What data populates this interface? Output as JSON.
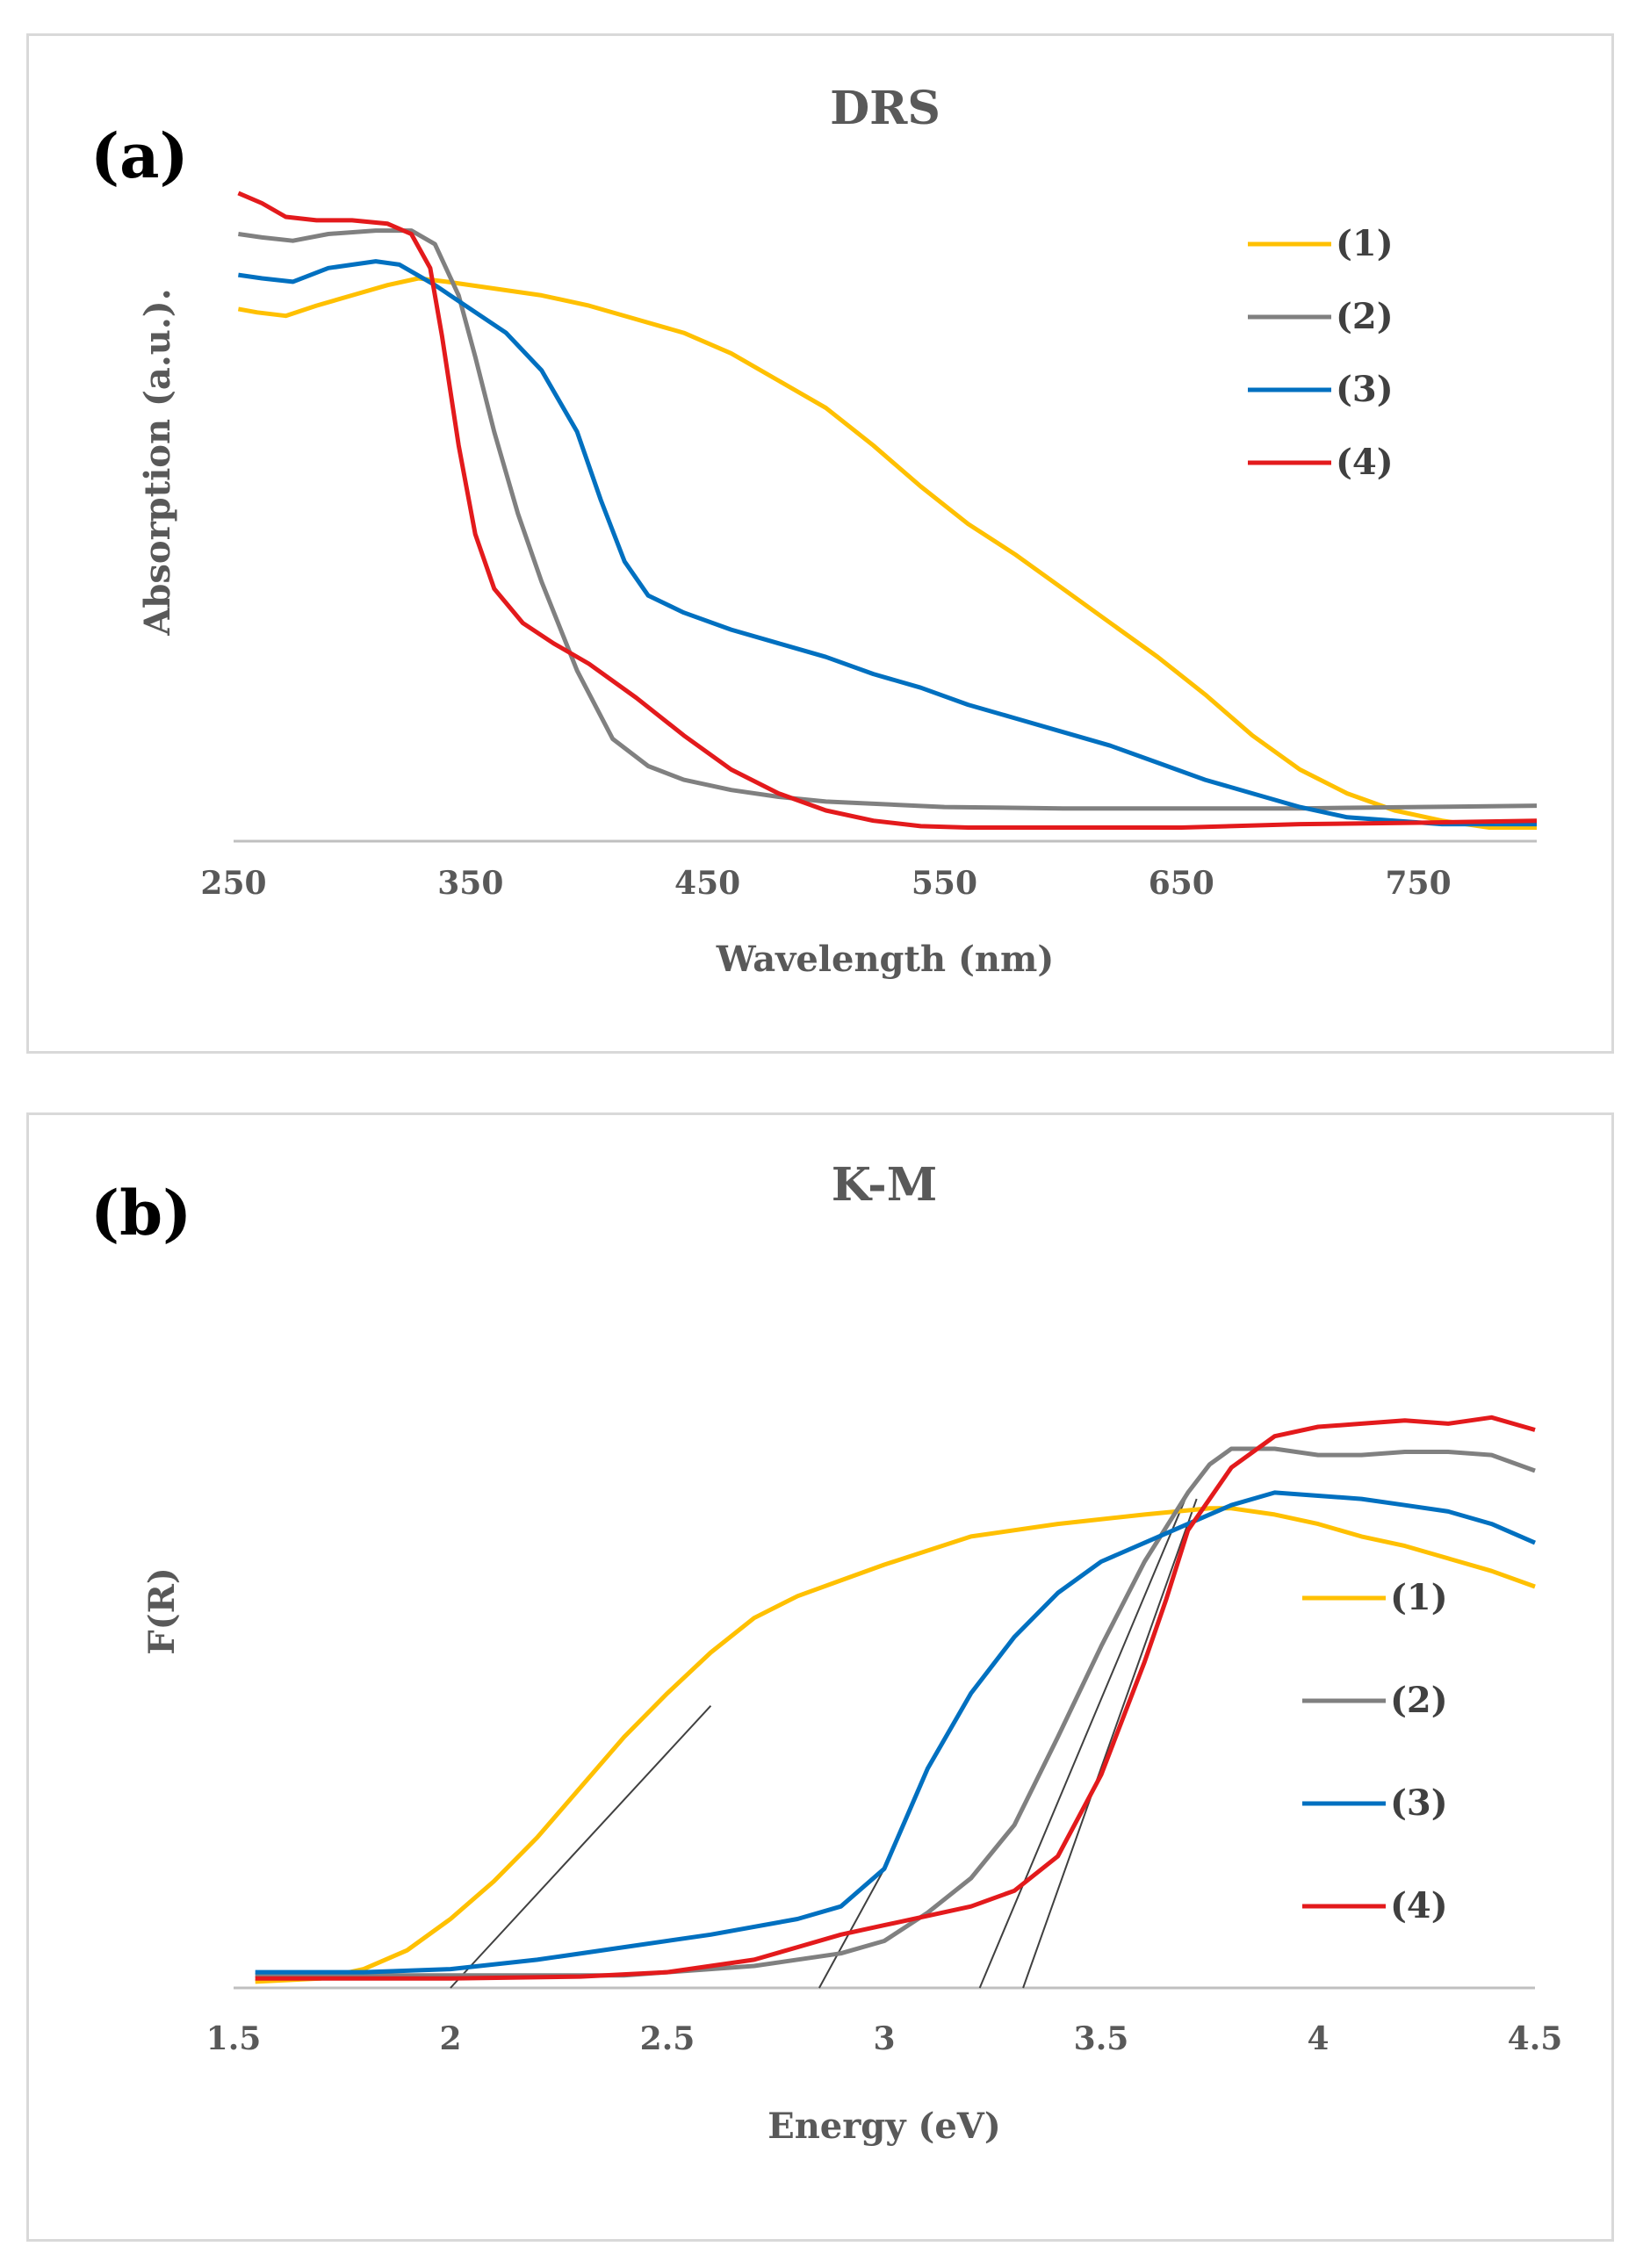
{
  "chart_data": [
    {
      "panel_label": "(a)",
      "type": "line",
      "title": "DRS",
      "xlabel": "Wavelength (nm)",
      "ylabel": "Absorption (a.u.).",
      "xlim": [
        250,
        800
      ],
      "ylim": [
        0,
        1.0
      ],
      "xticks": [
        "250",
        "350",
        "450",
        "550",
        "650",
        "750"
      ],
      "xtick_values": [
        250,
        350,
        450,
        550,
        650,
        750
      ],
      "grid": false,
      "legend_position": "top-right",
      "series": [
        {
          "name": "(1)",
          "color": "#ffc000",
          "points": [
            [
              252,
              0.78
            ],
            [
              260,
              0.775
            ],
            [
              272,
              0.77
            ],
            [
              285,
              0.785
            ],
            [
              300,
              0.8
            ],
            [
              315,
              0.815
            ],
            [
              328,
              0.825
            ],
            [
              340,
              0.82
            ],
            [
              360,
              0.81
            ],
            [
              380,
              0.8
            ],
            [
              400,
              0.785
            ],
            [
              420,
              0.765
            ],
            [
              440,
              0.745
            ],
            [
              460,
              0.715
            ],
            [
              480,
              0.675
            ],
            [
              500,
              0.635
            ],
            [
              520,
              0.58
            ],
            [
              540,
              0.52
            ],
            [
              560,
              0.465
            ],
            [
              580,
              0.42
            ],
            [
              600,
              0.37
            ],
            [
              620,
              0.32
            ],
            [
              640,
              0.27
            ],
            [
              660,
              0.215
            ],
            [
              680,
              0.155
            ],
            [
              700,
              0.105
            ],
            [
              720,
              0.07
            ],
            [
              740,
              0.045
            ],
            [
              760,
              0.03
            ],
            [
              780,
              0.02
            ],
            [
              800,
              0.02
            ]
          ]
        },
        {
          "name": "(2)",
          "color": "#808080",
          "points": [
            [
              252,
              0.89
            ],
            [
              262,
              0.885
            ],
            [
              275,
              0.88
            ],
            [
              290,
              0.89
            ],
            [
              310,
              0.895
            ],
            [
              325,
              0.895
            ],
            [
              335,
              0.875
            ],
            [
              345,
              0.8
            ],
            [
              352,
              0.71
            ],
            [
              360,
              0.6
            ],
            [
              370,
              0.48
            ],
            [
              380,
              0.38
            ],
            [
              395,
              0.25
            ],
            [
              410,
              0.15
            ],
            [
              425,
              0.11
            ],
            [
              440,
              0.09
            ],
            [
              460,
              0.075
            ],
            [
              480,
              0.065
            ],
            [
              500,
              0.058
            ],
            [
              550,
              0.05
            ],
            [
              600,
              0.048
            ],
            [
              700,
              0.048
            ],
            [
              750,
              0.05
            ],
            [
              800,
              0.052
            ]
          ]
        },
        {
          "name": "(3)",
          "color": "#0070c0",
          "points": [
            [
              252,
              0.83
            ],
            [
              262,
              0.825
            ],
            [
              275,
              0.82
            ],
            [
              290,
              0.84
            ],
            [
              310,
              0.85
            ],
            [
              320,
              0.845
            ],
            [
              335,
              0.815
            ],
            [
              350,
              0.78
            ],
            [
              365,
              0.745
            ],
            [
              380,
              0.69
            ],
            [
              395,
              0.6
            ],
            [
              405,
              0.5
            ],
            [
              415,
              0.41
            ],
            [
              425,
              0.36
            ],
            [
              440,
              0.335
            ],
            [
              460,
              0.31
            ],
            [
              480,
              0.29
            ],
            [
              500,
              0.27
            ],
            [
              520,
              0.245
            ],
            [
              540,
              0.225
            ],
            [
              560,
              0.2
            ],
            [
              580,
              0.18
            ],
            [
              600,
              0.16
            ],
            [
              620,
              0.14
            ],
            [
              640,
              0.115
            ],
            [
              660,
              0.09
            ],
            [
              680,
              0.07
            ],
            [
              700,
              0.05
            ],
            [
              720,
              0.035
            ],
            [
              740,
              0.03
            ],
            [
              760,
              0.025
            ],
            [
              780,
              0.025
            ],
            [
              800,
              0.025
            ]
          ]
        },
        {
          "name": "(4)",
          "color": "#e31a1c",
          "points": [
            [
              252,
              0.95
            ],
            [
              262,
              0.935
            ],
            [
              272,
              0.915
            ],
            [
              285,
              0.91
            ],
            [
              300,
              0.91
            ],
            [
              315,
              0.905
            ],
            [
              325,
              0.89
            ],
            [
              333,
              0.84
            ],
            [
              338,
              0.74
            ],
            [
              345,
              0.58
            ],
            [
              352,
              0.45
            ],
            [
              360,
              0.37
            ],
            [
              372,
              0.32
            ],
            [
              385,
              0.29
            ],
            [
              400,
              0.26
            ],
            [
              420,
              0.21
            ],
            [
              440,
              0.155
            ],
            [
              460,
              0.105
            ],
            [
              480,
              0.07
            ],
            [
              500,
              0.045
            ],
            [
              520,
              0.03
            ],
            [
              540,
              0.022
            ],
            [
              560,
              0.02
            ],
            [
              600,
              0.02
            ],
            [
              650,
              0.02
            ],
            [
              700,
              0.025
            ],
            [
              750,
              0.027
            ],
            [
              800,
              0.03
            ]
          ]
        }
      ]
    },
    {
      "panel_label": "(b)",
      "type": "line",
      "title": "K-M",
      "xlabel": "Energy (eV)",
      "ylabel": "F(R)",
      "xlim": [
        1.5,
        4.5
      ],
      "ylim": [
        0,
        1.0
      ],
      "xticks": [
        "1.5",
        "2",
        "2.5",
        "3",
        "3.5",
        "4",
        "4.5"
      ],
      "xtick_values": [
        1.5,
        2,
        2.5,
        3,
        3.5,
        4,
        4.5
      ],
      "grid": false,
      "legend_position": "right",
      "series": [
        {
          "name": "(1)",
          "color": "#ffc000",
          "points": [
            [
              1.55,
              0.01
            ],
            [
              1.7,
              0.015
            ],
            [
              1.8,
              0.03
            ],
            [
              1.9,
              0.06
            ],
            [
              2.0,
              0.11
            ],
            [
              2.1,
              0.17
            ],
            [
              2.2,
              0.24
            ],
            [
              2.3,
              0.32
            ],
            [
              2.4,
              0.4
            ],
            [
              2.5,
              0.47
            ],
            [
              2.6,
              0.535
            ],
            [
              2.7,
              0.59
            ],
            [
              2.8,
              0.625
            ],
            [
              2.9,
              0.65
            ],
            [
              3.0,
              0.675
            ],
            [
              3.2,
              0.72
            ],
            [
              3.4,
              0.74
            ],
            [
              3.6,
              0.755
            ],
            [
              3.75,
              0.765
            ],
            [
              3.8,
              0.765
            ],
            [
              3.9,
              0.755
            ],
            [
              4.0,
              0.74
            ],
            [
              4.1,
              0.72
            ],
            [
              4.2,
              0.705
            ],
            [
              4.3,
              0.685
            ],
            [
              4.4,
              0.665
            ],
            [
              4.5,
              0.64
            ]
          ]
        },
        {
          "name": "(2)",
          "color": "#808080",
          "points": [
            [
              1.55,
              0.02
            ],
            [
              2.0,
              0.02
            ],
            [
              2.4,
              0.02
            ],
            [
              2.7,
              0.035
            ],
            [
              2.9,
              0.055
            ],
            [
              3.0,
              0.075
            ],
            [
              3.1,
              0.12
            ],
            [
              3.2,
              0.175
            ],
            [
              3.3,
              0.26
            ],
            [
              3.4,
              0.4
            ],
            [
              3.5,
              0.545
            ],
            [
              3.6,
              0.68
            ],
            [
              3.7,
              0.79
            ],
            [
              3.75,
              0.835
            ],
            [
              3.8,
              0.86
            ],
            [
              3.9,
              0.86
            ],
            [
              4.0,
              0.85
            ],
            [
              4.1,
              0.85
            ],
            [
              4.2,
              0.855
            ],
            [
              4.3,
              0.855
            ],
            [
              4.4,
              0.85
            ],
            [
              4.5,
              0.825
            ]
          ]
        },
        {
          "name": "(3)",
          "color": "#0070c0",
          "points": [
            [
              1.55,
              0.025
            ],
            [
              1.8,
              0.025
            ],
            [
              2.0,
              0.03
            ],
            [
              2.2,
              0.045
            ],
            [
              2.4,
              0.065
            ],
            [
              2.6,
              0.085
            ],
            [
              2.8,
              0.11
            ],
            [
              2.9,
              0.13
            ],
            [
              3.0,
              0.19
            ],
            [
              3.05,
              0.27
            ],
            [
              3.1,
              0.35
            ],
            [
              3.2,
              0.47
            ],
            [
              3.3,
              0.56
            ],
            [
              3.4,
              0.63
            ],
            [
              3.5,
              0.68
            ],
            [
              3.6,
              0.71
            ],
            [
              3.7,
              0.74
            ],
            [
              3.8,
              0.77
            ],
            [
              3.9,
              0.79
            ],
            [
              4.0,
              0.785
            ],
            [
              4.1,
              0.78
            ],
            [
              4.2,
              0.77
            ],
            [
              4.3,
              0.76
            ],
            [
              4.4,
              0.74
            ],
            [
              4.5,
              0.71
            ]
          ]
        },
        {
          "name": "(4)",
          "color": "#e31a1c",
          "points": [
            [
              1.55,
              0.015
            ],
            [
              2.0,
              0.015
            ],
            [
              2.3,
              0.018
            ],
            [
              2.5,
              0.025
            ],
            [
              2.7,
              0.045
            ],
            [
              2.8,
              0.065
            ],
            [
              2.9,
              0.085
            ],
            [
              3.0,
              0.1
            ],
            [
              3.1,
              0.115
            ],
            [
              3.2,
              0.13
            ],
            [
              3.3,
              0.155
            ],
            [
              3.4,
              0.21
            ],
            [
              3.5,
              0.34
            ],
            [
              3.6,
              0.52
            ],
            [
              3.65,
              0.62
            ],
            [
              3.7,
              0.73
            ],
            [
              3.8,
              0.83
            ],
            [
              3.9,
              0.88
            ],
            [
              4.0,
              0.895
            ],
            [
              4.1,
              0.9
            ],
            [
              4.2,
              0.905
            ],
            [
              4.3,
              0.9
            ],
            [
              4.4,
              0.91
            ],
            [
              4.5,
              0.89
            ]
          ]
        }
      ],
      "tangent_lines": [
        {
          "from": [
            2.0,
            0.0
          ],
          "to": [
            2.6,
            0.45
          ]
        },
        {
          "from": [
            2.85,
            0.0
          ],
          "to": [
            3.0,
            0.19
          ]
        },
        {
          "from": [
            3.22,
            0.0
          ],
          "to": [
            3.7,
            0.79
          ]
        },
        {
          "from": [
            3.32,
            0.0
          ],
          "to": [
            3.72,
            0.78
          ]
        }
      ]
    }
  ]
}
